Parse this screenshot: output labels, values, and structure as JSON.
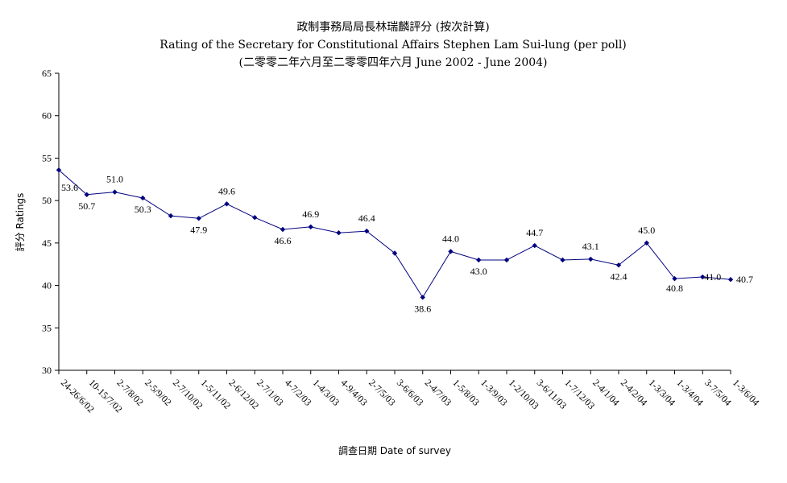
{
  "chart_data": {
    "type": "line",
    "title_lines": [
      "政制事務局局長林瑞麟評分 (按次計算)",
      "Rating of the Secretary for Constitutional Affairs Stephen Lam Sui-lung (per poll)",
      "(二零零二年六月至二零零四年六月 June 2002 - June 2004)"
    ],
    "xlabel": "調查日期 Date of survey",
    "ylabel": "評分 Ratings",
    "ylim": [
      30,
      65
    ],
    "yticks": [
      30,
      35,
      40,
      45,
      50,
      55,
      60,
      65
    ],
    "grid": false,
    "legend": "none",
    "line_color": "#000080",
    "categories": [
      "24-26/6/02",
      "10-15/7/02",
      "2-7/8/02",
      "2-5/9/02",
      "2-7/10/02",
      "1-5/11/02",
      "2-6/12/02",
      "2-7/1/03",
      "4-7/2/03",
      "1-4/3/03",
      "4-9/4/03",
      "2-7/5/03",
      "3-6/6/03",
      "2-4/7/03",
      "1-5/8/03",
      "1-3/9/03",
      "1-2/10/03",
      "3-6/11/03",
      "1-7/12/03",
      "2-4/1/04",
      "2-4/2/04",
      "1-3/3/04",
      "1-3/4/04",
      "3-7/5/04",
      "1-3/6/04"
    ],
    "values": [
      53.6,
      50.7,
      51.0,
      50.3,
      48.2,
      47.9,
      49.6,
      48.0,
      46.6,
      46.9,
      46.2,
      46.4,
      43.8,
      38.6,
      44.0,
      43.0,
      43.0,
      44.7,
      43.0,
      43.1,
      42.4,
      45.0,
      40.8,
      41.0,
      40.7
    ],
    "data_labels": [
      "53.6",
      "50.7",
      "51.0",
      "50.3",
      "",
      "47.9",
      "49.6",
      "",
      "46.6",
      "46.9",
      "",
      "46.4",
      "",
      "38.6",
      "44.0",
      "43.0",
      "",
      "44.7",
      "",
      "43.1",
      "42.4",
      "45.0",
      "40.8",
      "41.0",
      "40.7"
    ]
  }
}
